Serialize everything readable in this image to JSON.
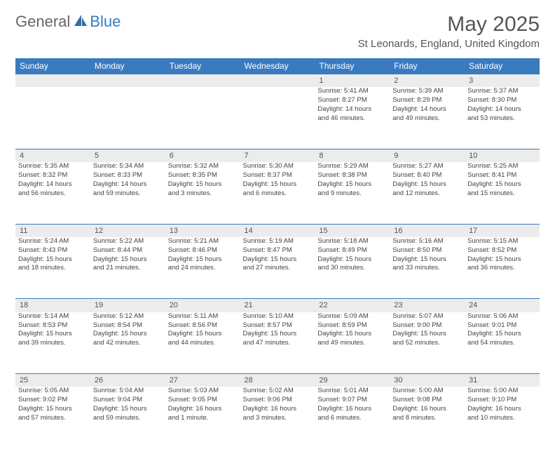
{
  "logo": {
    "text1": "General",
    "text2": "Blue"
  },
  "title": "May 2025",
  "location": "St Leonards, England, United Kingdom",
  "headerColor": "#3a7bbf",
  "dayHeaderBg": "#ececec",
  "days": [
    "Sunday",
    "Monday",
    "Tuesday",
    "Wednesday",
    "Thursday",
    "Friday",
    "Saturday"
  ],
  "weeks": [
    [
      null,
      null,
      null,
      null,
      {
        "n": "1",
        "sr": "5:41 AM",
        "ss": "8:27 PM",
        "dl": "14 hours and 46 minutes."
      },
      {
        "n": "2",
        "sr": "5:39 AM",
        "ss": "8:29 PM",
        "dl": "14 hours and 49 minutes."
      },
      {
        "n": "3",
        "sr": "5:37 AM",
        "ss": "8:30 PM",
        "dl": "14 hours and 53 minutes."
      }
    ],
    [
      {
        "n": "4",
        "sr": "5:35 AM",
        "ss": "8:32 PM",
        "dl": "14 hours and 56 minutes."
      },
      {
        "n": "5",
        "sr": "5:34 AM",
        "ss": "8:33 PM",
        "dl": "14 hours and 59 minutes."
      },
      {
        "n": "6",
        "sr": "5:32 AM",
        "ss": "8:35 PM",
        "dl": "15 hours and 3 minutes."
      },
      {
        "n": "7",
        "sr": "5:30 AM",
        "ss": "8:37 PM",
        "dl": "15 hours and 6 minutes."
      },
      {
        "n": "8",
        "sr": "5:29 AM",
        "ss": "8:38 PM",
        "dl": "15 hours and 9 minutes."
      },
      {
        "n": "9",
        "sr": "5:27 AM",
        "ss": "8:40 PM",
        "dl": "15 hours and 12 minutes."
      },
      {
        "n": "10",
        "sr": "5:25 AM",
        "ss": "8:41 PM",
        "dl": "15 hours and 15 minutes."
      }
    ],
    [
      {
        "n": "11",
        "sr": "5:24 AM",
        "ss": "8:43 PM",
        "dl": "15 hours and 18 minutes."
      },
      {
        "n": "12",
        "sr": "5:22 AM",
        "ss": "8:44 PM",
        "dl": "15 hours and 21 minutes."
      },
      {
        "n": "13",
        "sr": "5:21 AM",
        "ss": "8:46 PM",
        "dl": "15 hours and 24 minutes."
      },
      {
        "n": "14",
        "sr": "5:19 AM",
        "ss": "8:47 PM",
        "dl": "15 hours and 27 minutes."
      },
      {
        "n": "15",
        "sr": "5:18 AM",
        "ss": "8:49 PM",
        "dl": "15 hours and 30 minutes."
      },
      {
        "n": "16",
        "sr": "5:16 AM",
        "ss": "8:50 PM",
        "dl": "15 hours and 33 minutes."
      },
      {
        "n": "17",
        "sr": "5:15 AM",
        "ss": "8:52 PM",
        "dl": "15 hours and 36 minutes."
      }
    ],
    [
      {
        "n": "18",
        "sr": "5:14 AM",
        "ss": "8:53 PM",
        "dl": "15 hours and 39 minutes."
      },
      {
        "n": "19",
        "sr": "5:12 AM",
        "ss": "8:54 PM",
        "dl": "15 hours and 42 minutes."
      },
      {
        "n": "20",
        "sr": "5:11 AM",
        "ss": "8:56 PM",
        "dl": "15 hours and 44 minutes."
      },
      {
        "n": "21",
        "sr": "5:10 AM",
        "ss": "8:57 PM",
        "dl": "15 hours and 47 minutes."
      },
      {
        "n": "22",
        "sr": "5:09 AM",
        "ss": "8:59 PM",
        "dl": "15 hours and 49 minutes."
      },
      {
        "n": "23",
        "sr": "5:07 AM",
        "ss": "9:00 PM",
        "dl": "15 hours and 52 minutes."
      },
      {
        "n": "24",
        "sr": "5:06 AM",
        "ss": "9:01 PM",
        "dl": "15 hours and 54 minutes."
      }
    ],
    [
      {
        "n": "25",
        "sr": "5:05 AM",
        "ss": "9:02 PM",
        "dl": "15 hours and 57 minutes."
      },
      {
        "n": "26",
        "sr": "5:04 AM",
        "ss": "9:04 PM",
        "dl": "15 hours and 59 minutes."
      },
      {
        "n": "27",
        "sr": "5:03 AM",
        "ss": "9:05 PM",
        "dl": "16 hours and 1 minute."
      },
      {
        "n": "28",
        "sr": "5:02 AM",
        "ss": "9:06 PM",
        "dl": "16 hours and 3 minutes."
      },
      {
        "n": "29",
        "sr": "5:01 AM",
        "ss": "9:07 PM",
        "dl": "16 hours and 6 minutes."
      },
      {
        "n": "30",
        "sr": "5:00 AM",
        "ss": "9:08 PM",
        "dl": "16 hours and 8 minutes."
      },
      {
        "n": "31",
        "sr": "5:00 AM",
        "ss": "9:10 PM",
        "dl": "16 hours and 10 minutes."
      }
    ]
  ],
  "labels": {
    "sunrise": "Sunrise:",
    "sunset": "Sunset:",
    "daylight": "Daylight:"
  }
}
